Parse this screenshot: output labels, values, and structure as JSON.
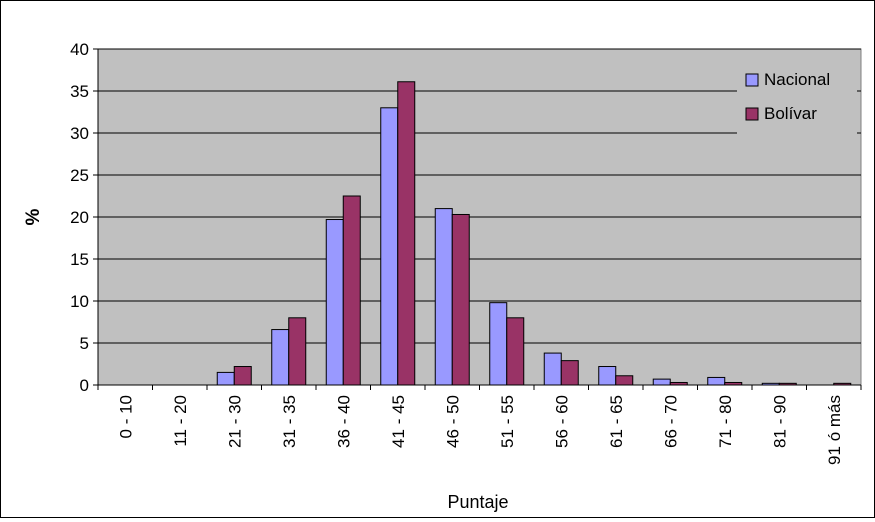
{
  "chart_data": {
    "type": "bar",
    "title": "",
    "xlabel": "Puntaje",
    "ylabel": "%",
    "ylim": [
      0,
      40
    ],
    "yticks": [
      0,
      5,
      10,
      15,
      20,
      25,
      30,
      35,
      40
    ],
    "grid": true,
    "legend_position": "top-right",
    "plot_background": "#c0c0c0",
    "categories": [
      "0 - 10",
      "11 - 20",
      "21 - 30",
      "31 - 35",
      "36 - 40",
      "41 - 45",
      "46 - 50",
      "51 - 55",
      "56 - 60",
      "61 - 65",
      "66 - 70",
      "71 - 80",
      "81 - 90",
      "91 ó más"
    ],
    "series": [
      {
        "name": "Nacional",
        "color": "#9999ff",
        "values": [
          0,
          0,
          1.5,
          6.6,
          19.7,
          33.0,
          21.0,
          9.8,
          3.8,
          2.2,
          0.7,
          0.9,
          0.2,
          0
        ]
      },
      {
        "name": "Bolívar",
        "color": "#993366",
        "values": [
          0,
          0,
          2.2,
          8.0,
          22.5,
          36.1,
          20.3,
          8.0,
          2.9,
          1.1,
          0.3,
          0.3,
          0.2,
          0.2
        ]
      }
    ]
  }
}
